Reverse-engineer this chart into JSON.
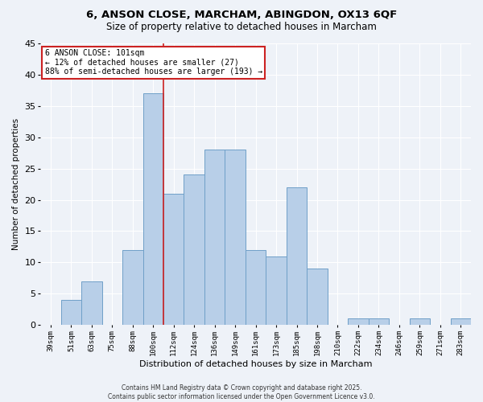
{
  "title_line1": "6, ANSON CLOSE, MARCHAM, ABINGDON, OX13 6QF",
  "title_line2": "Size of property relative to detached houses in Marcham",
  "xlabel": "Distribution of detached houses by size in Marcham",
  "ylabel": "Number of detached properties",
  "categories": [
    "39sqm",
    "51sqm",
    "63sqm",
    "75sqm",
    "88sqm",
    "100sqm",
    "112sqm",
    "124sqm",
    "136sqm",
    "149sqm",
    "161sqm",
    "173sqm",
    "185sqm",
    "198sqm",
    "210sqm",
    "222sqm",
    "234sqm",
    "246sqm",
    "259sqm",
    "271sqm",
    "283sqm"
  ],
  "values": [
    0,
    4,
    7,
    0,
    12,
    37,
    21,
    24,
    28,
    28,
    12,
    11,
    22,
    9,
    0,
    1,
    1,
    0,
    1,
    0,
    1
  ],
  "bar_color": "#b8cfe8",
  "bar_edge_color": "#6fa0c8",
  "highlight_index": 5,
  "highlight_line_color": "#cc2222",
  "bg_color": "#eef2f8",
  "grid_color": "#ffffff",
  "annotation_text": "6 ANSON CLOSE: 101sqm\n← 12% of detached houses are smaller (27)\n88% of semi-detached houses are larger (193) →",
  "annotation_box_color": "#ffffff",
  "annotation_box_edge_color": "#cc2222",
  "footer_text": "Contains HM Land Registry data © Crown copyright and database right 2025.\nContains public sector information licensed under the Open Government Licence v3.0.",
  "ylim": [
    0,
    45
  ],
  "yticks": [
    0,
    5,
    10,
    15,
    20,
    25,
    30,
    35,
    40,
    45
  ]
}
